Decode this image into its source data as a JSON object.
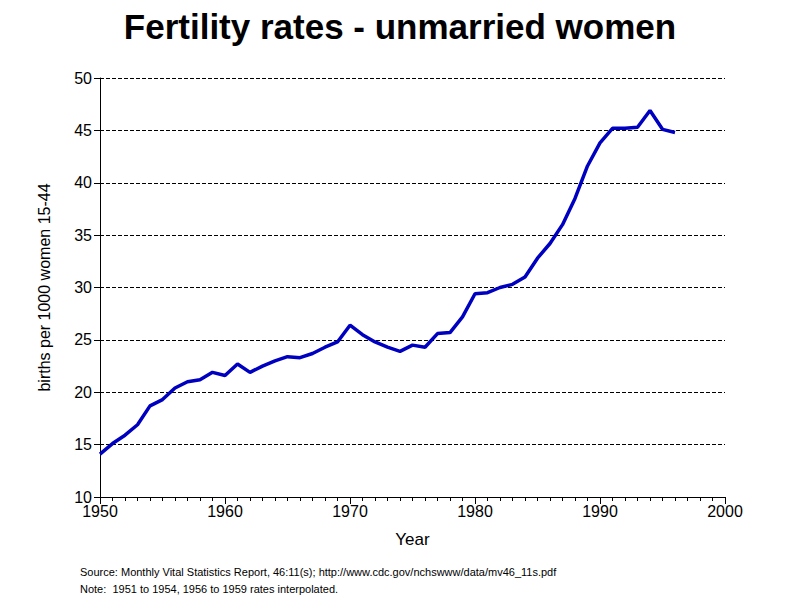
{
  "chart_data": {
    "type": "line",
    "title": "Fertility rates - unmarried women",
    "xlabel": "Year",
    "ylabel": "births per 1000 women 15-44",
    "x": [
      1950,
      1951,
      1952,
      1953,
      1954,
      1955,
      1956,
      1957,
      1958,
      1959,
      1960,
      1961,
      1962,
      1963,
      1964,
      1965,
      1966,
      1967,
      1968,
      1969,
      1970,
      1971,
      1972,
      1973,
      1974,
      1975,
      1976,
      1977,
      1978,
      1979,
      1980,
      1981,
      1982,
      1983,
      1984,
      1985,
      1986,
      1987,
      1988,
      1989,
      1990,
      1991,
      1992,
      1993,
      1994,
      1995,
      1996
    ],
    "values": [
      14.1,
      15.1,
      15.9,
      16.9,
      18.7,
      19.3,
      20.4,
      21.0,
      21.2,
      21.9,
      21.6,
      22.7,
      21.9,
      22.5,
      23.0,
      23.4,
      23.3,
      23.7,
      24.3,
      24.8,
      26.4,
      25.5,
      24.8,
      24.3,
      23.9,
      24.5,
      24.3,
      25.6,
      25.7,
      27.2,
      29.4,
      29.5,
      30.0,
      30.3,
      31.0,
      32.8,
      34.2,
      36.0,
      38.5,
      41.6,
      43.8,
      45.2,
      45.2,
      45.3,
      46.9,
      45.1,
      44.8
    ],
    "color": "#0000c0",
    "xlim": [
      1950,
      2000
    ],
    "xticks": [
      1950,
      1960,
      1970,
      1980,
      1990,
      2000
    ],
    "ylim": [
      10,
      50
    ],
    "yticks": [
      10,
      15,
      20,
      25,
      30,
      35,
      40,
      45,
      50
    ],
    "grid": true,
    "annotations": [
      "Source: Monthly Vital Statistics Report, 46:11(s); http://www.cdc.gov/nchswww/data/mv46_11s.pdf",
      "Note:  1951 to 1954, 1956 to 1959 rates interpolated."
    ]
  }
}
